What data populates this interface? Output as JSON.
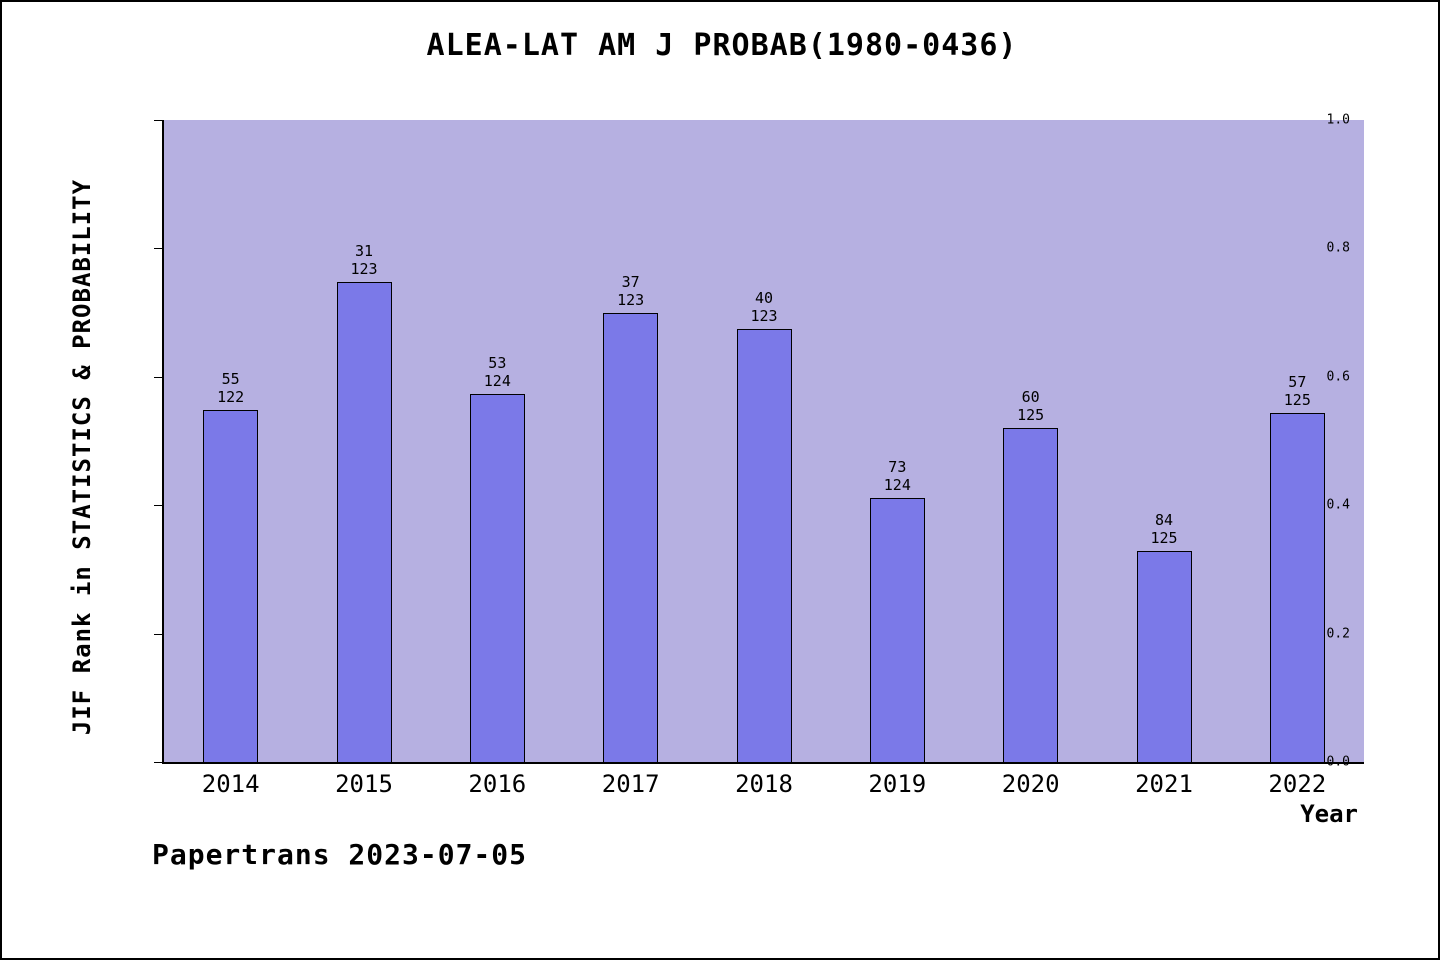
{
  "chart_data": {
    "type": "bar",
    "title": "ALEA-LAT AM J PROBAB(1980-0436)",
    "xlabel": "Year",
    "ylabel": "JIF Rank in STATISTICS & PROBABILITY",
    "ylim": [
      0.0,
      1.0
    ],
    "yticks": [
      "0.0",
      "0.2",
      "0.4",
      "0.6",
      "0.8",
      "1.0"
    ],
    "grid": false,
    "legend": "none",
    "categories": [
      "2014",
      "2015",
      "2016",
      "2017",
      "2018",
      "2019",
      "2020",
      "2021",
      "2022"
    ],
    "values": [
      0.549,
      0.748,
      0.573,
      0.699,
      0.675,
      0.411,
      0.52,
      0.328,
      0.544
    ],
    "bar_labels": [
      {
        "rank": "55",
        "total": "122"
      },
      {
        "rank": "31",
        "total": "123"
      },
      {
        "rank": "53",
        "total": "124"
      },
      {
        "rank": "37",
        "total": "123"
      },
      {
        "rank": "40",
        "total": "123"
      },
      {
        "rank": "73",
        "total": "124"
      },
      {
        "rank": "60",
        "total": "125"
      },
      {
        "rank": "84",
        "total": "125"
      },
      {
        "rank": "57",
        "total": "125"
      }
    ],
    "colors": {
      "bar_fill": "#7b79e8",
      "bar_edge": "#000000",
      "plot_background": "#b6b0e1",
      "page_background": "#ffffff"
    }
  },
  "footer": {
    "text": "Papertrans 2023-07-05"
  }
}
